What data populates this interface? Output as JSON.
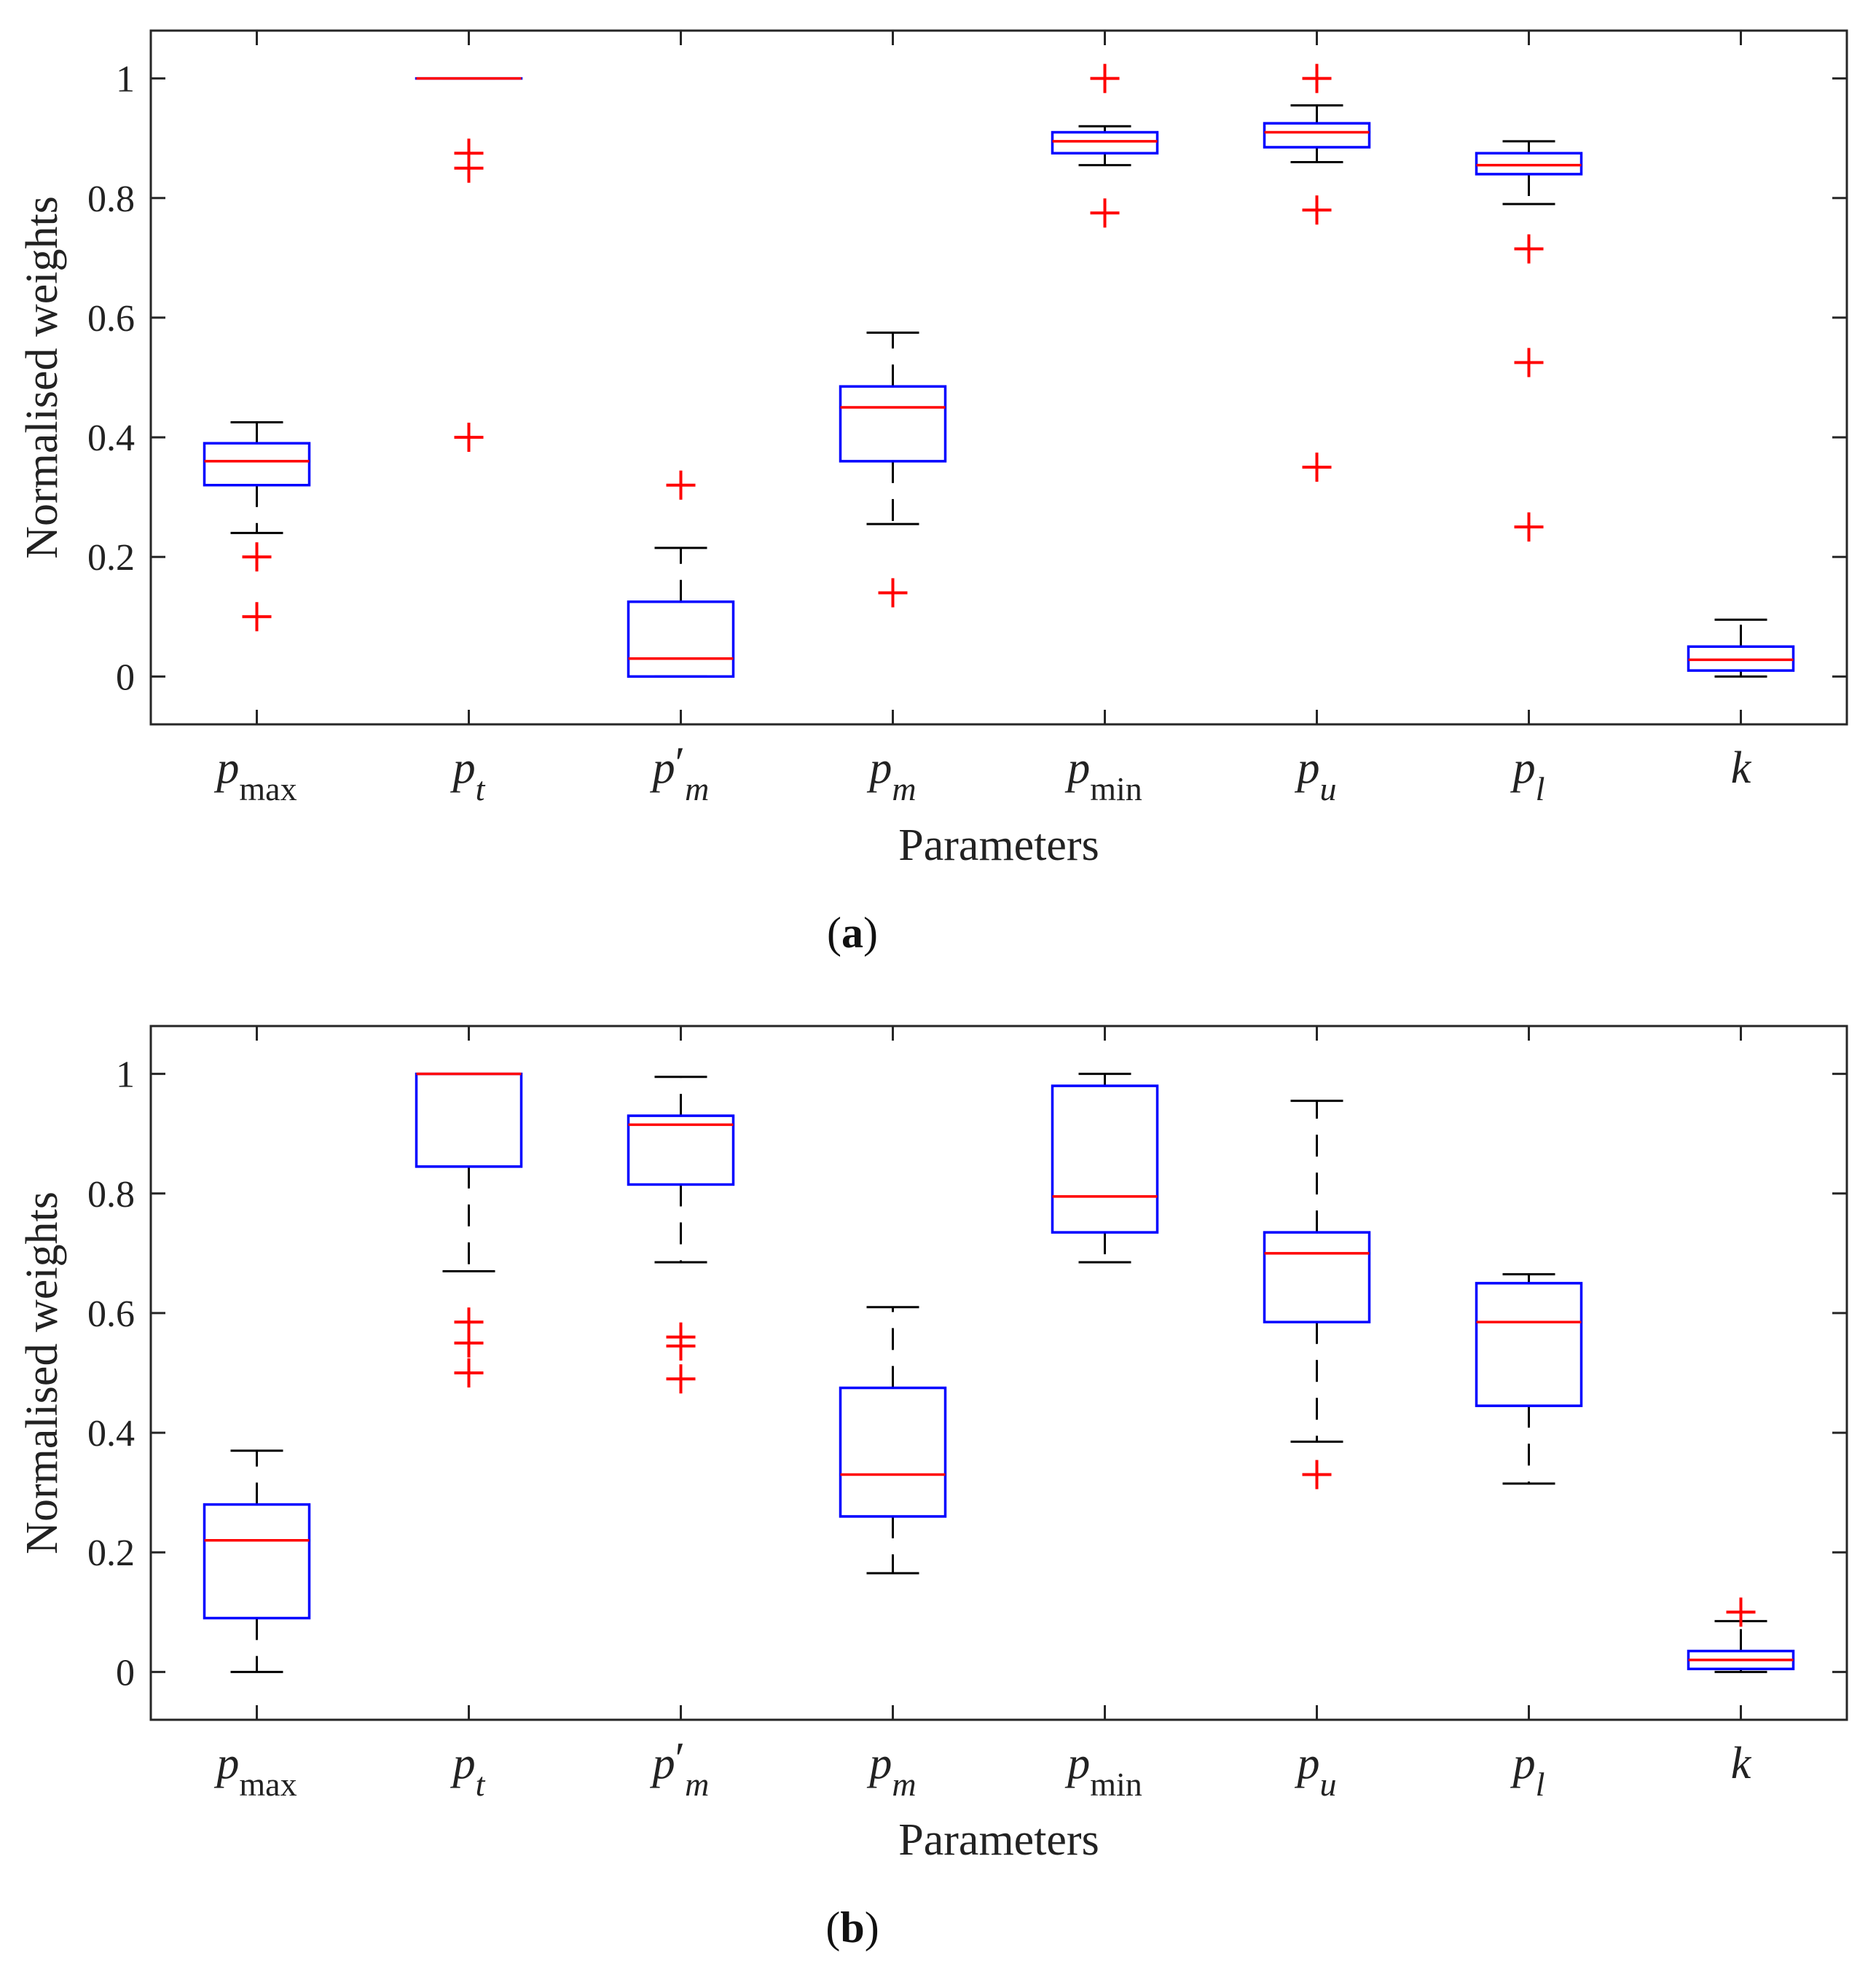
{
  "chart_data": [
    {
      "type": "box",
      "caption_letter": "a",
      "xlabel": "Parameters",
      "ylabel": "Normalised weights",
      "ylim": [
        -0.08,
        1.08
      ],
      "yticks": [
        0,
        0.2,
        0.4,
        0.6,
        0.8,
        1
      ],
      "ytick_labels": [
        "0",
        "0.2",
        "0.4",
        "0.6",
        "0.8",
        "1"
      ],
      "categories": [
        {
          "base": "p",
          "sub": "max",
          "prime": false
        },
        {
          "base": "p",
          "sub": "t",
          "prime": false
        },
        {
          "base": "p",
          "sub": "m",
          "prime": true
        },
        {
          "base": "p",
          "sub": "m",
          "prime": false
        },
        {
          "base": "p",
          "sub": "min",
          "prime": false
        },
        {
          "base": "p",
          "sub": "u",
          "prime": false
        },
        {
          "base": "p",
          "sub": "l",
          "prime": false
        },
        {
          "base": "k",
          "sub": "",
          "prime": false
        }
      ],
      "boxes": [
        {
          "whisker_low": 0.24,
          "q1": 0.32,
          "median": 0.36,
          "q3": 0.39,
          "whisker_high": 0.425,
          "outliers": [
            0.2,
            0.1
          ]
        },
        {
          "whisker_low": 1.0,
          "q1": 1.0,
          "median": 1.0,
          "q3": 1.0,
          "whisker_high": 1.0,
          "outliers": [
            0.875,
            0.85,
            0.4
          ]
        },
        {
          "whisker_low": 0.0,
          "q1": 0.0,
          "median": 0.03,
          "q3": 0.125,
          "whisker_high": 0.215,
          "outliers": [
            0.32
          ]
        },
        {
          "whisker_low": 0.255,
          "q1": 0.36,
          "median": 0.45,
          "q3": 0.485,
          "whisker_high": 0.575,
          "outliers": [
            0.14
          ]
        },
        {
          "whisker_low": 0.855,
          "q1": 0.875,
          "median": 0.895,
          "q3": 0.91,
          "whisker_high": 0.92,
          "outliers": [
            1.0,
            0.775
          ]
        },
        {
          "whisker_low": 0.86,
          "q1": 0.885,
          "median": 0.91,
          "q3": 0.925,
          "whisker_high": 0.955,
          "outliers": [
            1.0,
            0.78,
            0.35
          ]
        },
        {
          "whisker_low": 0.79,
          "q1": 0.84,
          "median": 0.855,
          "q3": 0.875,
          "whisker_high": 0.895,
          "outliers": [
            0.715,
            0.525,
            0.25
          ]
        },
        {
          "whisker_low": 0.0,
          "q1": 0.01,
          "median": 0.028,
          "q3": 0.05,
          "whisker_high": 0.095,
          "outliers": []
        }
      ]
    },
    {
      "type": "box",
      "caption_letter": "b",
      "xlabel": "Parameters",
      "ylabel": "Normalised weights",
      "ylim": [
        -0.08,
        1.08
      ],
      "yticks": [
        0,
        0.2,
        0.4,
        0.6,
        0.8,
        1
      ],
      "ytick_labels": [
        "0",
        "0.2",
        "0.4",
        "0.6",
        "0.8",
        "1"
      ],
      "categories": [
        {
          "base": "p",
          "sub": "max",
          "prime": false
        },
        {
          "base": "p",
          "sub": "t",
          "prime": false
        },
        {
          "base": "p",
          "sub": "m",
          "prime": true
        },
        {
          "base": "p",
          "sub": "m",
          "prime": false
        },
        {
          "base": "p",
          "sub": "min",
          "prime": false
        },
        {
          "base": "p",
          "sub": "u",
          "prime": false
        },
        {
          "base": "p",
          "sub": "l",
          "prime": false
        },
        {
          "base": "k",
          "sub": "",
          "prime": false
        }
      ],
      "boxes": [
        {
          "whisker_low": 0.0,
          "q1": 0.09,
          "median": 0.22,
          "q3": 0.28,
          "whisker_high": 0.37,
          "outliers": []
        },
        {
          "whisker_low": 0.67,
          "q1": 0.845,
          "median": 1.0,
          "q3": 1.0,
          "whisker_high": 1.0,
          "outliers": [
            0.585,
            0.55,
            0.5
          ]
        },
        {
          "whisker_low": 0.685,
          "q1": 0.815,
          "median": 0.915,
          "q3": 0.93,
          "whisker_high": 0.995,
          "outliers": [
            0.56,
            0.545,
            0.49
          ]
        },
        {
          "whisker_low": 0.165,
          "q1": 0.26,
          "median": 0.33,
          "q3": 0.475,
          "whisker_high": 0.61,
          "outliers": []
        },
        {
          "whisker_low": 0.685,
          "q1": 0.735,
          "median": 0.795,
          "q3": 0.98,
          "whisker_high": 1.0,
          "outliers": []
        },
        {
          "whisker_low": 0.385,
          "q1": 0.585,
          "median": 0.7,
          "q3": 0.735,
          "whisker_high": 0.955,
          "outliers": [
            0.33
          ]
        },
        {
          "whisker_low": 0.315,
          "q1": 0.445,
          "median": 0.585,
          "q3": 0.65,
          "whisker_high": 0.665,
          "outliers": []
        },
        {
          "whisker_low": 0.0,
          "q1": 0.005,
          "median": 0.02,
          "q3": 0.035,
          "whisker_high": 0.085,
          "outliers": [
            0.1
          ]
        }
      ]
    }
  ],
  "colors": {
    "box": "#0000ff",
    "median": "#ff0000",
    "outlier": "#ff0000",
    "whisker": "#000000",
    "axis": "#262626"
  }
}
